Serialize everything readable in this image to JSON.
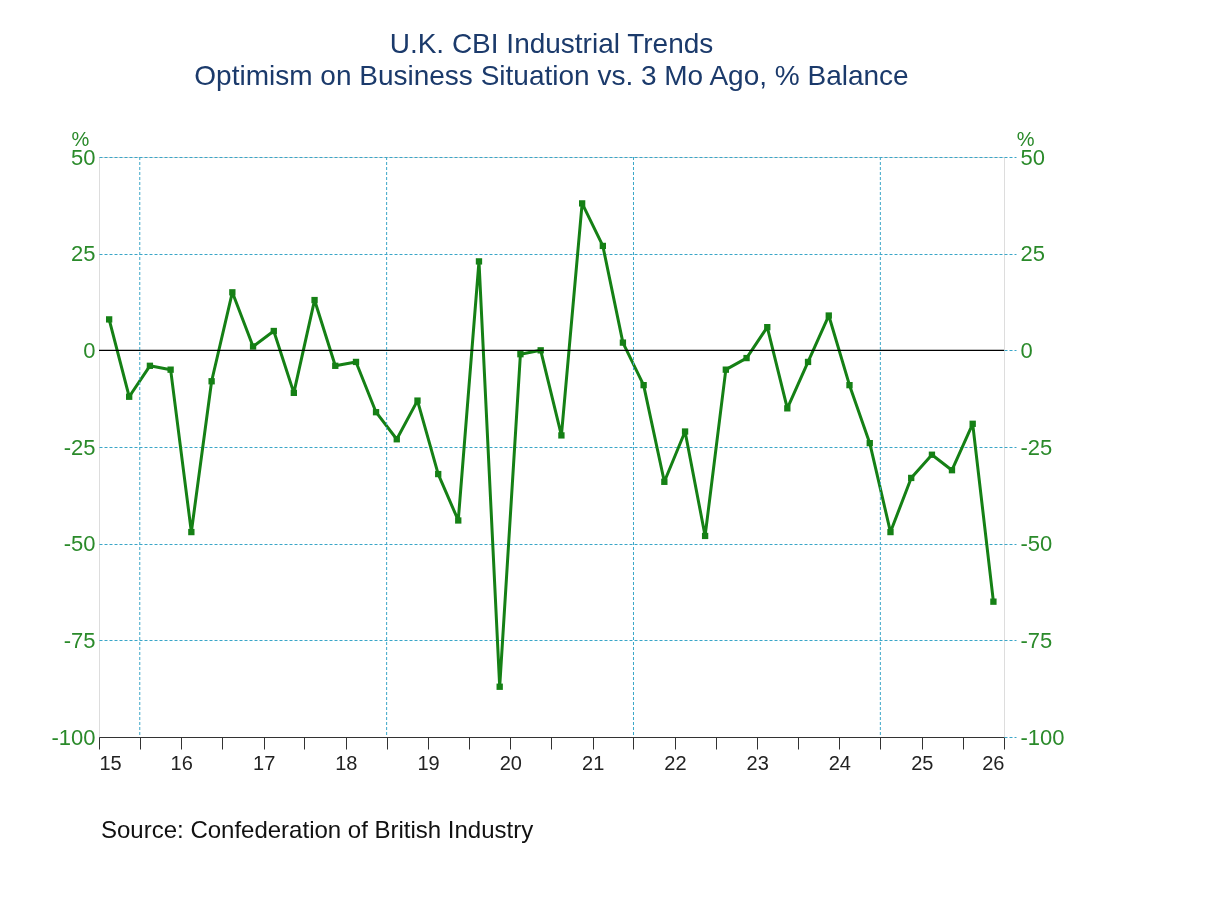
{
  "chart_data": {
    "type": "line",
    "title": "U.K. CBI Industrial Trends",
    "subtitle": "Optimism on Business Situation vs. 3 Mo Ago, % Balance",
    "ylabel": "%",
    "y2label": "%",
    "x": [
      "2015-02-15",
      "2015-05-15",
      "2015-08-15",
      "2015-11-15",
      "2016-02-15",
      "2016-05-15",
      "2016-08-15",
      "2016-11-15",
      "2017-02-15",
      "2017-05-15",
      "2017-08-15",
      "2017-11-15",
      "2018-02-15",
      "2018-05-15",
      "2018-08-15",
      "2018-11-15",
      "2019-02-15",
      "2019-05-15",
      "2019-08-15",
      "2019-11-15",
      "2020-02-15",
      "2020-05-15",
      "2020-08-15",
      "2020-11-15",
      "2021-02-15",
      "2021-05-15",
      "2021-08-15",
      "2021-11-15",
      "2022-02-15",
      "2022-05-15",
      "2022-08-15",
      "2022-11-15",
      "2023-02-15",
      "2023-05-15",
      "2023-08-15",
      "2023-11-15",
      "2024-02-15",
      "2024-05-15",
      "2024-08-15",
      "2024-11-15",
      "2025-02-15",
      "2025-05-15",
      "2025-08-15",
      "2025-11-15"
    ],
    "series": [
      {
        "color": "#158015",
        "values": [
          8,
          -12,
          -4,
          -5,
          -47,
          -8,
          15,
          1,
          5,
          -11,
          13,
          -4,
          -3,
          -16,
          -23,
          -13,
          -32,
          -44,
          23,
          -87,
          -1,
          0,
          -22,
          38,
          27,
          2,
          -9,
          -34,
          -21,
          -48,
          -5,
          -2,
          6,
          -15,
          -3,
          9,
          -9,
          -24,
          -47,
          -33,
          -27,
          -31,
          -19,
          -65
        ]
      }
    ],
    "marker": "square",
    "line_style": "solid",
    "xlim": [
      "2015-01-01",
      "2026-01-01"
    ],
    "xticks": [
      {
        "value": "2015-01-01",
        "label": "15"
      },
      {
        "value": "2015-07-01",
        "label": null
      },
      {
        "value": "2016-01-01",
        "label": "16"
      },
      {
        "value": "2016-07-01",
        "label": null
      },
      {
        "value": "2017-01-01",
        "label": "17"
      },
      {
        "value": "2017-07-01",
        "label": null
      },
      {
        "value": "2018-01-01",
        "label": "18"
      },
      {
        "value": "2018-07-01",
        "label": null
      },
      {
        "value": "2019-01-01",
        "label": "19"
      },
      {
        "value": "2019-07-01",
        "label": null
      },
      {
        "value": "2020-01-01",
        "label": "20"
      },
      {
        "value": "2020-07-01",
        "label": null
      },
      {
        "value": "2021-01-01",
        "label": "21"
      },
      {
        "value": "2021-07-01",
        "label": null
      },
      {
        "value": "2022-01-01",
        "label": "22"
      },
      {
        "value": "2022-07-01",
        "label": null
      },
      {
        "value": "2023-01-01",
        "label": "23"
      },
      {
        "value": "2023-07-01",
        "label": null
      },
      {
        "value": "2024-01-01",
        "label": "24"
      },
      {
        "value": "2024-07-01",
        "label": null
      },
      {
        "value": "2025-01-01",
        "label": "25"
      },
      {
        "value": "2025-07-01",
        "label": null
      },
      {
        "value": "2026-01-01",
        "label": "26"
      }
    ],
    "ylim": [
      -100,
      50
    ],
    "yticks": [
      -100,
      -75,
      -50,
      -25,
      0,
      25,
      50
    ],
    "y2lim": [
      -100,
      50
    ],
    "y2ticks": [
      -100,
      -75,
      -50,
      -25,
      0,
      25,
      50
    ],
    "grid": "y",
    "ref_lines": [
      {
        "axis": "y",
        "value": 0,
        "color": "#000000",
        "line_style": "solid"
      },
      {
        "axis": "x",
        "value": "2015-07-01",
        "color": "#3aa6c8",
        "line_style": "dashed"
      },
      {
        "axis": "x",
        "value": "2018-07-01",
        "color": "#3aa6c8",
        "line_style": "dashed"
      },
      {
        "axis": "x",
        "value": "2021-07-01",
        "color": "#3aa6c8",
        "line_style": "dashed"
      },
      {
        "axis": "x",
        "value": "2024-07-01",
        "color": "#3aa6c8",
        "line_style": "dashed"
      }
    ],
    "annotations": [
      "Source:  Confederation of British Industry"
    ]
  }
}
